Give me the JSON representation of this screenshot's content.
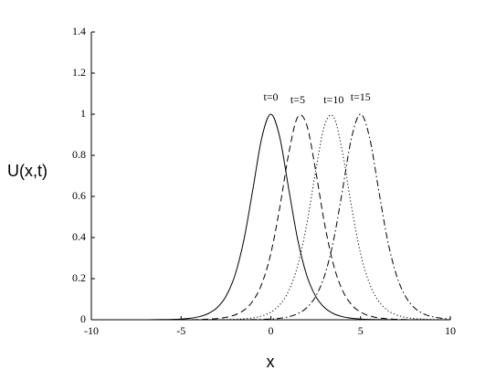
{
  "chart_data": {
    "type": "line",
    "x_label": "x",
    "y_label": "U(x,t)",
    "x": [
      -10,
      -9.5,
      -9,
      -8.5,
      -8,
      -7.5,
      -7,
      -6.5,
      -6,
      -5.5,
      -5,
      -4.5,
      -4,
      -3.5,
      -3,
      -2.5,
      -2,
      -1.5,
      -1,
      -0.5,
      0,
      0.5,
      1,
      1.5,
      2,
      2.5,
      3,
      3.5,
      4,
      4.5,
      5,
      5.5,
      6,
      6.5,
      7,
      7.5,
      8,
      8.5,
      9,
      9.5,
      10
    ],
    "series": [
      {
        "name": "t=0",
        "color": "#000000",
        "dash": "solid",
        "values": [
          0,
          0,
          0,
          0,
          0.0001,
          0.0001,
          0.0002,
          0.0004,
          0.0009,
          0.0018,
          0.0036,
          0.0073,
          0.0147,
          0.0294,
          0.0582,
          0.1138,
          0.2162,
          0.3888,
          0.6347,
          0.8868,
          1,
          0.8868,
          0.6347,
          0.3888,
          0.2162,
          0.1138,
          0.0582,
          0.0294,
          0.0147,
          0.0073,
          0.0036,
          0.0018,
          0.0009,
          0.0004,
          0.0002,
          0.0001,
          0.0001,
          0,
          0,
          0,
          0
        ]
      },
      {
        "name": "t=5",
        "color": "#000000",
        "dash": "dashed",
        "values": [
          0,
          0,
          0,
          0,
          0,
          0,
          0,
          0,
          0.0001,
          0.0002,
          0.0004,
          0.0007,
          0.0014,
          0.0029,
          0.0058,
          0.0116,
          0.0233,
          0.0464,
          0.0912,
          0.1753,
          0.3223,
          0.5467,
          0.8103,
          0.9865,
          0.9474,
          0.7243,
          0.464,
          0.2649,
          0.1415,
          0.073,
          0.0369,
          0.0185,
          0.0092,
          0.0046,
          0.0023,
          0.0011,
          0.0006,
          0.0003,
          0.0001,
          0.0001,
          0
        ]
      },
      {
        "name": "t=10",
        "color": "#000000",
        "dash": "dotted",
        "values": [
          0,
          0,
          0,
          0,
          0,
          0,
          0,
          0,
          0,
          0,
          0,
          0.0001,
          0.0001,
          0.0003,
          0.0006,
          0.0011,
          0.0023,
          0.0046,
          0.0092,
          0.0185,
          0.0369,
          0.073,
          0.1415,
          0.2649,
          0.464,
          0.7243,
          0.9474,
          0.9865,
          0.8103,
          0.5467,
          0.3223,
          0.1753,
          0.0912,
          0.0464,
          0.0233,
          0.0116,
          0.0058,
          0.0029,
          0.0014,
          0.0007,
          0.0004
        ]
      },
      {
        "name": "t=15",
        "color": "#000000",
        "dash": "dashdot",
        "values": [
          0,
          0,
          0,
          0,
          0,
          0,
          0,
          0,
          0,
          0,
          0,
          0,
          0,
          0,
          0.0001,
          0.0001,
          0.0002,
          0.0004,
          0.0009,
          0.0018,
          0.0036,
          0.0073,
          0.0147,
          0.0294,
          0.0582,
          0.1138,
          0.2162,
          0.3888,
          0.6347,
          0.8868,
          1,
          0.8868,
          0.6347,
          0.3888,
          0.2162,
          0.1138,
          0.0582,
          0.0294,
          0.0147,
          0.0073,
          0.0036
        ]
      }
    ],
    "xlim": [
      -10,
      10
    ],
    "xticks": [
      -10,
      -5,
      0,
      5,
      10
    ],
    "ylim": [
      0,
      1.4
    ],
    "yticks": [
      0,
      0.2,
      0.4,
      0.6,
      0.8,
      1,
      1.2,
      1.4
    ],
    "grid": false
  }
}
